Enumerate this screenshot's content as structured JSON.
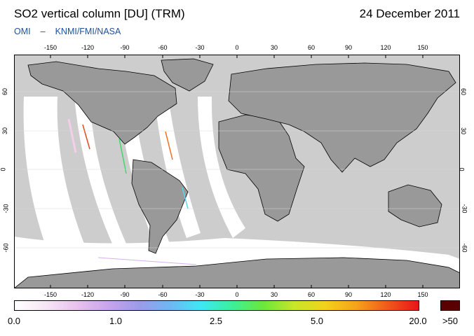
{
  "header": {
    "title": "SO2 vertical column [DU] (TRM)",
    "date": "24 December 2011",
    "credit_left": "OMI",
    "credit_sep": "–",
    "credit_right": "KNMI/FMI/NASA"
  },
  "map": {
    "lon_ticks": [
      "-150",
      "-120",
      "-90",
      "-60",
      "-30",
      "0",
      "30",
      "60",
      "90",
      "120",
      "150"
    ],
    "lat_ticks": [
      "60",
      "30",
      "0",
      "-30",
      "-60"
    ],
    "colors": {
      "background": "#cdcdcd",
      "land": "#999999",
      "swath": "#ffffff",
      "coast": "#000000"
    }
  },
  "colorbar": {
    "labels": [
      "0.0",
      "1.0",
      "2.5",
      "5.0",
      "20.0"
    ],
    "overflow_label": ">50",
    "overflow_color": "#5a0000",
    "stops": [
      "#ffffff",
      "#f7e6f6",
      "#e9c1ee",
      "#c9a4ec",
      "#9b9be9",
      "#6fb7f2",
      "#3de8f4",
      "#3cf09a",
      "#6be83a",
      "#c8e62a",
      "#f2d21a",
      "#f6a21a",
      "#f15a1a",
      "#e8141a"
    ]
  }
}
